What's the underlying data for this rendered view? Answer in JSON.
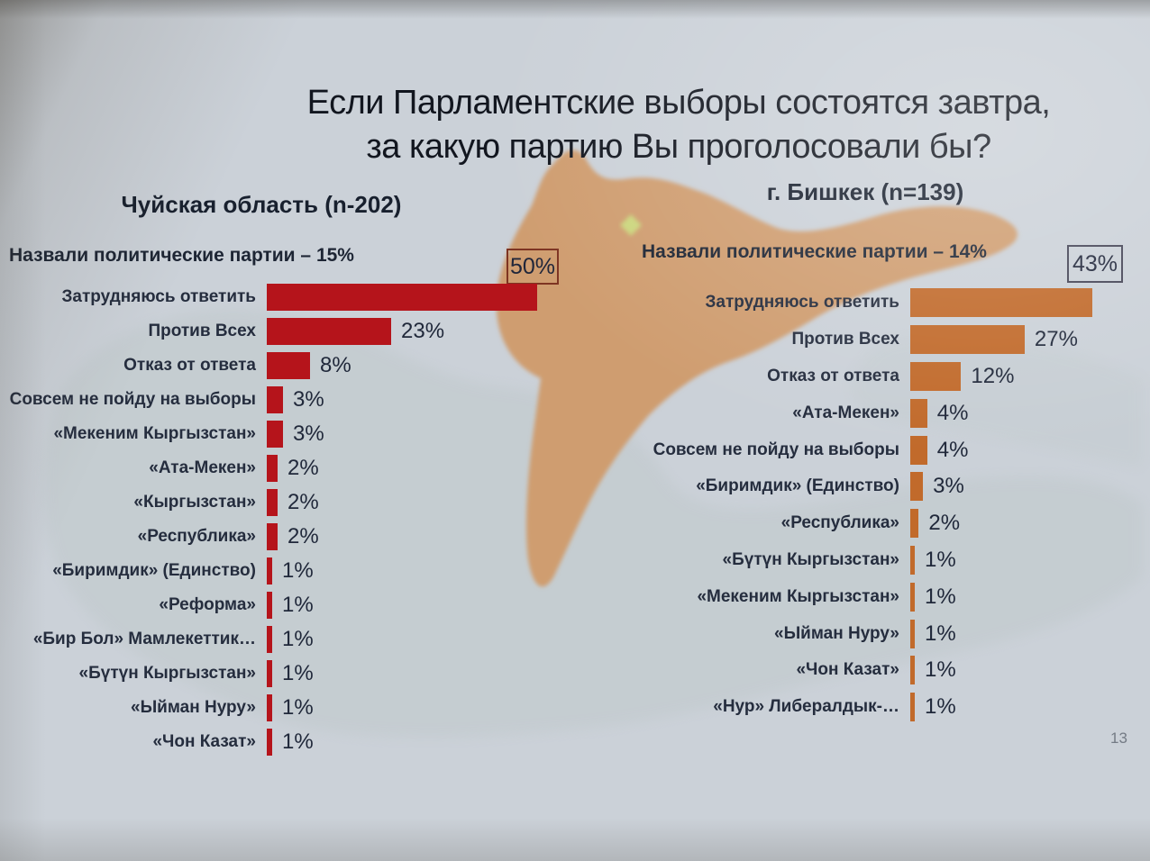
{
  "slide": {
    "title_line1": "Если Парламентские выборы состоятся завтра,",
    "title_line2": "за какую партию Вы проголосовали бы?",
    "page_number": "13"
  },
  "colors": {
    "background": "#cbd1d8",
    "left_bar_red": "#b5141b",
    "right_bar_orange": "#c16a2b",
    "chuy_region_tan": "#cf9d6f",
    "bishkek_marker_yellow": "#ccd67e",
    "map_silhouette_gray": "#b3bfbd",
    "text_dark": "#1d2534",
    "callout_border_left": "#7e3422",
    "callout_border_right": "#454556"
  },
  "icons": {
    "bishkek_marker": "diamond-map-marker"
  },
  "chart_data": [
    {
      "type": "bar",
      "orientation": "horizontal",
      "title": "Чуйская область (n-202)",
      "subtitle": "Назвали политические партии – 15%",
      "bar_color": "#b5141b",
      "callout": "50%",
      "xlim": [
        0,
        50
      ],
      "categories": [
        "Затрудняюсь ответить",
        "Против Всех",
        "Отказ от ответа",
        "Совсем не пойду на выборы",
        "«Мекеним Кыргызстан»",
        "«Ата-Мекен»",
        "«Кыргызстан»",
        "«Республика»",
        "«Биримдик» (Единство)",
        "«Реформа»",
        "«Бир Бол» Мамлекеттик…",
        "«Бүтүн Кыргызстан»",
        "«Ыйман Нуру»",
        "«Чон Казат»"
      ],
      "values": [
        50,
        23,
        8,
        3,
        3,
        2,
        2,
        2,
        1,
        1,
        1,
        1,
        1,
        1
      ],
      "value_labels": [
        "50%",
        "23%",
        "8%",
        "3%",
        "3%",
        "2%",
        "2%",
        "2%",
        "1%",
        "1%",
        "1%",
        "1%",
        "1%",
        "1%"
      ]
    },
    {
      "type": "bar",
      "orientation": "horizontal",
      "title": "г. Бишкек (n=139)",
      "subtitle": "Назвали политические партии – 14%",
      "bar_color": "#c16a2b",
      "callout": "43%",
      "xlim": [
        0,
        43
      ],
      "categories": [
        "Затрудняюсь ответить",
        "Против Всех",
        "Отказ от ответа",
        "«Ата-Мекен»",
        "Совсем не пойду на выборы",
        "«Биримдик» (Единство)",
        "«Республика»",
        "«Бүтүн Кыргызстан»",
        "«Мекеним Кыргызстан»",
        "«Ыйман Нуру»",
        "«Чон Казат»",
        "«Нур» Либералдык-…"
      ],
      "values": [
        43,
        27,
        12,
        4,
        4,
        3,
        2,
        1,
        1,
        1,
        1,
        1
      ],
      "value_labels": [
        "43%",
        "27%",
        "12%",
        "4%",
        "4%",
        "3%",
        "2%",
        "1%",
        "1%",
        "1%",
        "1%",
        "1%"
      ]
    }
  ]
}
